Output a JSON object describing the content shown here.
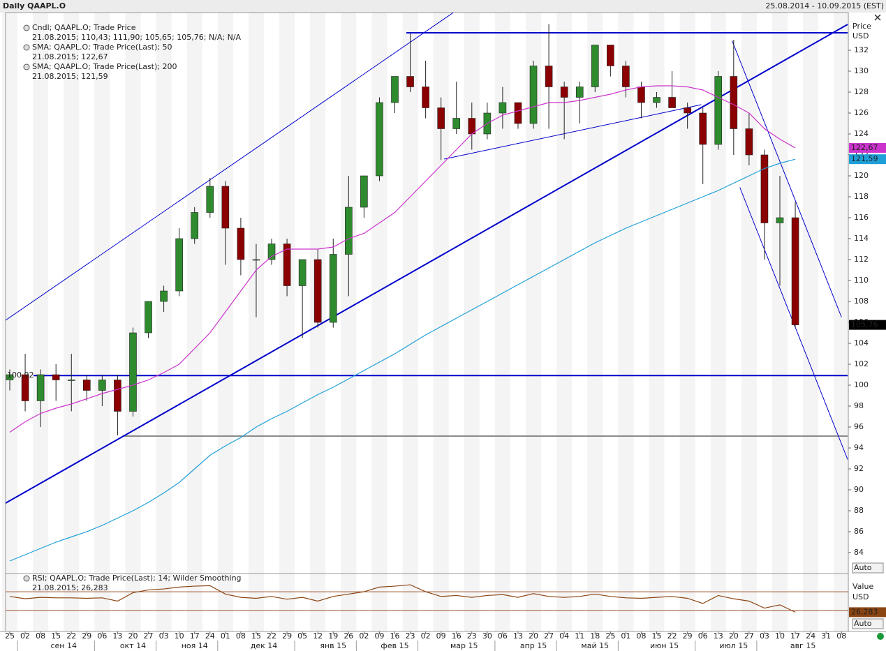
{
  "header": {
    "title": "Daily QAAPL.O",
    "range": "25.08.2014 - 10.09.2015 (EST)"
  },
  "chart_data": [
    {
      "type": "candlestick",
      "ylabel": "Price",
      "yunit": "USD",
      "button": "Auto",
      "categories": [
        "25",
        "02",
        "08",
        "15",
        "22",
        "29",
        "06",
        "13",
        "20",
        "27",
        "03",
        "10",
        "17",
        "24",
        "01",
        "08",
        "15",
        "22",
        "29",
        "05",
        "12",
        "19",
        "26",
        "02",
        "09",
        "16",
        "23",
        "02",
        "09",
        "16",
        "23",
        "30",
        "06",
        "13",
        "20",
        "27",
        "04",
        "11",
        "18",
        "25",
        "01",
        "08",
        "15",
        "22",
        "29",
        "06",
        "13",
        "20",
        "27",
        "03",
        "10",
        "17",
        "24",
        "31",
        "08"
      ],
      "months": [
        "сен 14",
        "окт 14",
        "ноя 14",
        "дек 14",
        "янв 15",
        "фев 15",
        "мар 15",
        "апр 15",
        "май 15",
        "июн 15",
        "июл 15",
        "авг 15"
      ],
      "ylim": [
        82,
        135.6
      ],
      "yticks": [
        132,
        130,
        128,
        126,
        124,
        122,
        120,
        118,
        116,
        114,
        112,
        110,
        108,
        106,
        104,
        102,
        100,
        98,
        96,
        94,
        92,
        90,
        88,
        86,
        84
      ],
      "series": [
        {
          "name": "Cndl; QAAPL.O; Trade Price",
          "info": "21.08.2015; 110,43; 111,90; 105,65; 105,76; N/A; N/A",
          "up_color": "#2e8b2e",
          "down_color": "#8b0000",
          "color": "#000000",
          "last_value_label": "105,76",
          "open": [
            100.5,
            101,
            98.5,
            101,
            100.5,
            100.5,
            99.5,
            100.5,
            97.5,
            105,
            108,
            109,
            114,
            116.5,
            119,
            115,
            112,
            112,
            113.5,
            109.5,
            112,
            106,
            112.5,
            117,
            120,
            127,
            129.5,
            128.5,
            126.5,
            124.5,
            125.5,
            124,
            126,
            127,
            125,
            130.5,
            128.5,
            127.5,
            128.5,
            132.5,
            130.5,
            128.5,
            127,
            127.5,
            126.5,
            126,
            123,
            129.5,
            124.5,
            122,
            115.5,
            116,
            null,
            null,
            null
          ],
          "high": [
            101.5,
            103,
            101.5,
            102,
            103,
            101,
            101,
            101,
            105.5,
            108,
            109.5,
            115,
            117,
            119.8,
            119.5,
            116,
            113.5,
            114,
            114,
            112,
            113,
            114,
            120,
            120,
            127.5,
            129.5,
            133.6,
            131,
            127.5,
            129,
            127,
            127,
            128.5,
            127,
            131,
            134.5,
            129,
            129,
            132.5,
            132.5,
            131,
            129,
            128,
            130,
            127,
            126.5,
            130,
            133,
            126,
            122.5,
            120,
            117.5,
            null,
            null,
            null
          ],
          "low": [
            99.5,
            97.5,
            96,
            98.5,
            97.5,
            98.5,
            98,
            95.2,
            97,
            104.5,
            107,
            108.5,
            113.5,
            116,
            111.5,
            110.5,
            106.5,
            111.5,
            108.5,
            104.5,
            105.5,
            105.5,
            108.5,
            116,
            119.5,
            126,
            128,
            125.5,
            121.5,
            124,
            122.5,
            123.5,
            124.5,
            124.5,
            124.5,
            124.5,
            123.5,
            125,
            128,
            129.5,
            127.5,
            125.5,
            126.5,
            126.5,
            124.5,
            119.2,
            122.5,
            122,
            121,
            112,
            109.5,
            105.5,
            null,
            null,
            null
          ],
          "close": [
            101,
            98.5,
            101,
            100.5,
            100.5,
            99.5,
            100.5,
            97.5,
            105,
            108,
            109,
            114,
            116.5,
            119,
            115,
            112,
            112,
            113.5,
            109.5,
            112,
            106,
            112.5,
            117,
            120,
            127,
            129.5,
            128.5,
            126.5,
            124.5,
            125.5,
            124,
            126,
            127,
            125,
            130.5,
            128.5,
            127.5,
            128.5,
            132.5,
            130.5,
            128.5,
            127,
            127.5,
            126.5,
            126,
            123,
            129.5,
            124.5,
            122,
            115.5,
            116,
            105.76,
            null,
            null,
            null
          ]
        },
        {
          "name": "SMA; QAAPL.O; Trade Price(Last);  50",
          "info": "21.08.2015; 122,67",
          "color": "#cc33cc",
          "last_value_label": "122,67",
          "values": [
            95.5,
            96.5,
            97.3,
            97.8,
            98.2,
            98.7,
            99.2,
            99.6,
            100,
            100.5,
            101.2,
            102,
            103.5,
            105,
            107,
            109,
            111,
            112.3,
            113,
            113,
            113,
            113.2,
            114,
            114.5,
            115.5,
            116.5,
            118,
            119.5,
            121,
            122.5,
            124,
            125,
            125.8,
            126.2,
            126.6,
            127,
            127,
            127.2,
            127.5,
            127.8,
            128.2,
            128.5,
            128.6,
            128.6,
            128.5,
            128.2,
            127.5,
            126.8,
            126,
            124.5,
            123.5,
            122.67,
            null,
            null,
            null
          ]
        },
        {
          "name": "SMA; QAAPL.O; Trade Price(Last);  200",
          "info": "21.08.2015; 121,59",
          "color": "#1e9fd8",
          "last_value_label": "121,59",
          "values": [
            83.2,
            83.8,
            84.4,
            85,
            85.5,
            86,
            86.6,
            87.3,
            88,
            88.8,
            89.7,
            90.7,
            92,
            93.3,
            94.2,
            95,
            96,
            96.8,
            97.5,
            98.3,
            99.1,
            99.8,
            100.6,
            101.4,
            102.2,
            103,
            103.9,
            104.8,
            105.6,
            106.4,
            107.2,
            108,
            108.8,
            109.6,
            110.4,
            111.2,
            112,
            112.8,
            113.6,
            114.3,
            115,
            115.6,
            116.2,
            116.8,
            117.4,
            118,
            118.6,
            119.3,
            120,
            120.7,
            121.2,
            121.59,
            null,
            null,
            null
          ]
        }
      ],
      "drawings": [
        {
          "x": [
            1.54,
            54.4
          ],
          "y": [
            100.92,
            100.92
          ],
          "color": "#0000cc",
          "width": 2,
          "label": "100,92"
        },
        {
          "x": [
            25.75,
            54.4
          ],
          "y": [
            133.67,
            133.67
          ],
          "color": "#0000cc",
          "width": 2
        },
        {
          "x": [
            7.3,
            54.4
          ],
          "y": [
            95.13,
            95.13
          ],
          "color": "#666666",
          "width": 1.5
        },
        {
          "x": [
            -0.27,
            54.4
          ],
          "y": [
            88.73,
            134.47
          ],
          "color": "#0000cc",
          "width": 2
        },
        {
          "x": [
            -0.27,
            28.8
          ],
          "y": [
            106.2,
            135.6
          ],
          "color": "#0000cc",
          "width": 1
        },
        {
          "x": [
            28.2,
            44.9
          ],
          "y": [
            121.6,
            126.8
          ],
          "color": "#0000cc",
          "width": 1
        },
        {
          "x": [
            46.9,
            54.0
          ],
          "y": [
            132.9,
            106.5
          ],
          "color": "#0000cc",
          "width": 1
        },
        {
          "x": [
            47.4,
            54.4
          ],
          "y": [
            118.9,
            92.9
          ],
          "color": "#0000cc",
          "width": 1
        }
      ]
    },
    {
      "type": "line",
      "name": "RSI; QAAPL.O; Trade Price(Last);  14; Wilder Smoothing",
      "info": "21.08.2015; 26,283",
      "ylabel": "Value",
      "yunit": "USD",
      "button": "Auto",
      "ylim": [
        0,
        100
      ],
      "levels": [
        70,
        30
      ],
      "level_color": "#a0522d",
      "series": [
        {
          "color": "#8b4513",
          "last_value_label": "26,283",
          "values": [
            60,
            55,
            58,
            57,
            57,
            56,
            57,
            50,
            68,
            74,
            76,
            80,
            82,
            83,
            65,
            58,
            56,
            60,
            54,
            58,
            50,
            60,
            65,
            70,
            80,
            82,
            85,
            70,
            60,
            62,
            58,
            62,
            64,
            58,
            66,
            60,
            58,
            60,
            65,
            60,
            57,
            56,
            58,
            60,
            56,
            45,
            62,
            55,
            50,
            35,
            42,
            26.283,
            null,
            null,
            null
          ]
        }
      ]
    }
  ]
}
